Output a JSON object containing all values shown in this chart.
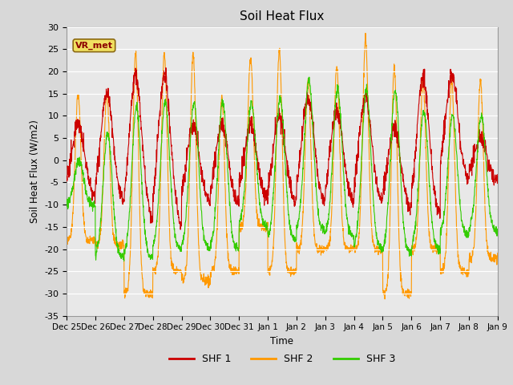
{
  "title": "Soil Heat Flux",
  "ylabel": "Soil Heat Flux (W/m2)",
  "xlabel": "Time",
  "ylim": [
    -35,
    30
  ],
  "yticks": [
    -35,
    -30,
    -25,
    -20,
    -15,
    -10,
    -5,
    0,
    5,
    10,
    15,
    20,
    25,
    30
  ],
  "background_color": "#d8d8d8",
  "plot_bg_color": "#e8e8e8",
  "legend_label": "VR_met",
  "series_labels": [
    "SHF 1",
    "SHF 2",
    "SHF 3"
  ],
  "series_colors": [
    "#cc0000",
    "#ff9900",
    "#33cc00"
  ],
  "xtick_labels": [
    "Dec 25",
    "Dec 26",
    "Dec 27",
    "Dec 28",
    "Dec 29",
    "Dec 30",
    "Dec 31",
    "Jan 1",
    "Jan 2",
    "Jan 3",
    "Jan 4",
    "Jan 5",
    "Jan 6",
    "Jan 7",
    "Jan 8",
    "Jan 9"
  ],
  "n_days": 15,
  "ppd": 144,
  "shf1_peaks": [
    8,
    15,
    19,
    19,
    8,
    8,
    8,
    10,
    14,
    11,
    14,
    7,
    19,
    19,
    5
  ],
  "shf1_nights": [
    -8,
    -10,
    -14,
    -15,
    -10,
    -10,
    -9,
    -10,
    -10,
    -10,
    -10,
    -11,
    -13,
    -5,
    -5
  ],
  "shf2_peaks": [
    15,
    15,
    24,
    24,
    24,
    14,
    23,
    25,
    18,
    21,
    27,
    21,
    18,
    18,
    18
  ],
  "shf2_nights": [
    -18,
    -19,
    -30,
    -25,
    -27,
    -25,
    -15,
    -25,
    -20,
    -20,
    -20,
    -30,
    -20,
    -25,
    -22
  ],
  "shf3_peaks": [
    0,
    6,
    12,
    13,
    13,
    13,
    13,
    14,
    18,
    16,
    16,
    16,
    11,
    10,
    10
  ],
  "shf3_nights": [
    -10,
    -22,
    -22,
    -20,
    -20,
    -20,
    -15,
    -18,
    -16,
    -17,
    -20,
    -21,
    -20,
    -17,
    -16
  ]
}
